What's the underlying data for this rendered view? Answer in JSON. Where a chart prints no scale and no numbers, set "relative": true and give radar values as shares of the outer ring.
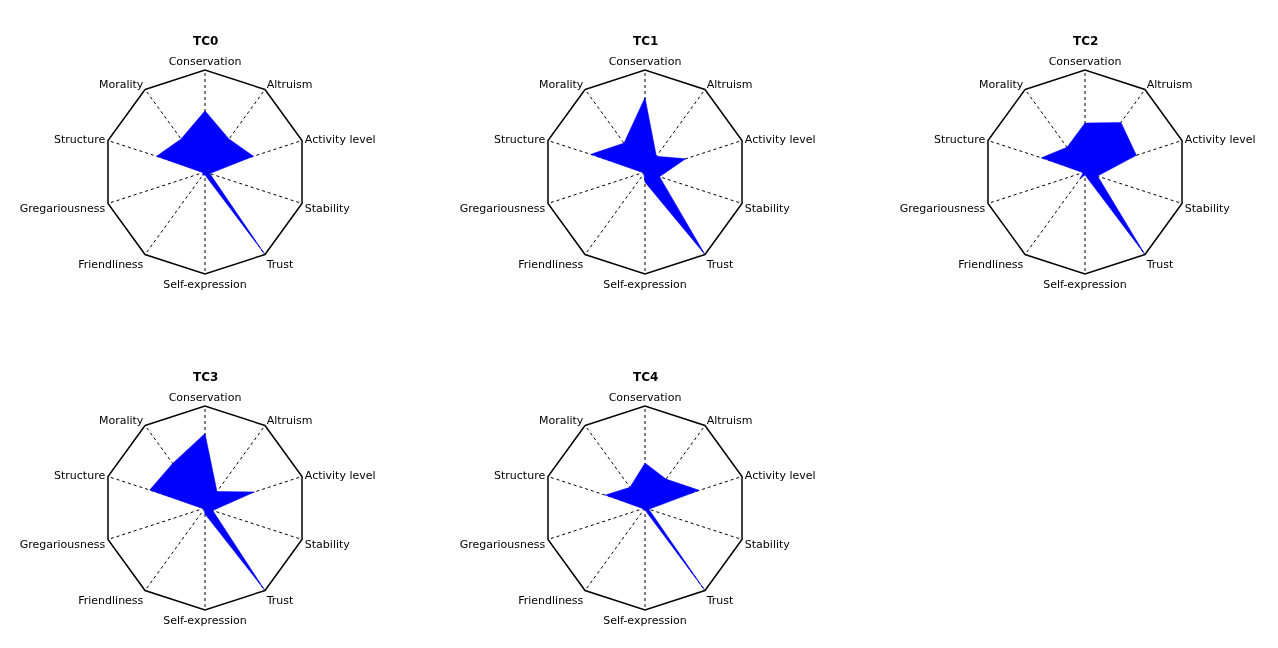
{
  "chart_data": [
    {
      "type": "radar",
      "title": "TC0",
      "relative": true,
      "grid": true,
      "categories": [
        "Conservation",
        "Altruism",
        "Activity level",
        "Stability",
        "Trust",
        "Self-expression",
        "Friendliness",
        "Gregariousness",
        "Structure",
        "Morality"
      ],
      "series": [
        {
          "color": "#0000ff",
          "values": [
            0.6,
            0.4,
            0.5,
            0.05,
            1.0,
            0.03,
            0.04,
            0.02,
            0.5,
            0.4
          ]
        }
      ]
    },
    {
      "type": "radar",
      "title": "TC1",
      "relative": true,
      "grid": true,
      "categories": [
        "Conservation",
        "Altruism",
        "Activity level",
        "Stability",
        "Trust",
        "Self-expression",
        "Friendliness",
        "Gregariousness",
        "Structure",
        "Morality"
      ],
      "series": [
        {
          "color": "#0000ff",
          "values": [
            0.73,
            0.19,
            0.42,
            0.15,
            1.0,
            0.1,
            0.02,
            0.02,
            0.56,
            0.35
          ]
        }
      ]
    },
    {
      "type": "radar",
      "title": "TC2",
      "relative": true,
      "grid": true,
      "categories": [
        "Conservation",
        "Altruism",
        "Activity level",
        "Stability",
        "Trust",
        "Self-expression",
        "Friendliness",
        "Gregariousness",
        "Structure",
        "Morality"
      ],
      "series": [
        {
          "color": "#0000ff",
          "values": [
            0.48,
            0.6,
            0.53,
            0.13,
            1.0,
            0.03,
            0.08,
            0.02,
            0.45,
            0.3
          ]
        }
      ]
    },
    {
      "type": "radar",
      "title": "TC3",
      "relative": true,
      "grid": true,
      "categories": [
        "Conservation",
        "Altruism",
        "Activity level",
        "Stability",
        "Trust",
        "Self-expression",
        "Friendliness",
        "Gregariousness",
        "Structure",
        "Morality"
      ],
      "series": [
        {
          "color": "#0000ff",
          "values": [
            0.73,
            0.2,
            0.51,
            0.08,
            1.0,
            0.06,
            0.02,
            0.02,
            0.57,
            0.54
          ]
        }
      ]
    },
    {
      "type": "radar",
      "title": "TC4",
      "relative": true,
      "grid": true,
      "categories": [
        "Conservation",
        "Altruism",
        "Activity level",
        "Stability",
        "Trust",
        "Self-expression",
        "Friendliness",
        "Gregariousness",
        "Structure",
        "Morality"
      ],
      "series": [
        {
          "color": "#0000ff",
          "values": [
            0.44,
            0.35,
            0.56,
            0.04,
            1.0,
            0.02,
            0.02,
            0.02,
            0.41,
            0.25
          ]
        }
      ]
    }
  ]
}
